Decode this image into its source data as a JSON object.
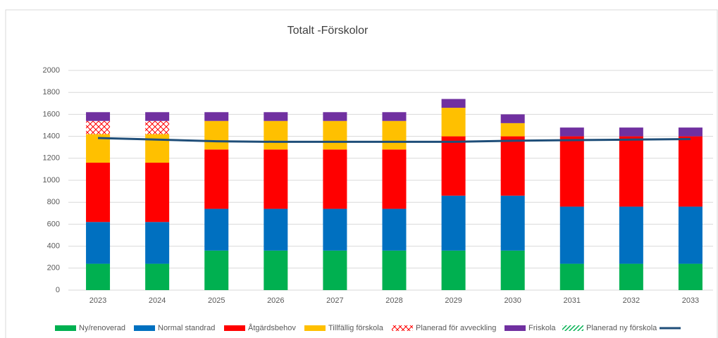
{
  "chart_data": {
    "type": "stacked_bar_line",
    "title": "Totalt -Förskolor",
    "categories": [
      "2023",
      "2024",
      "2025",
      "2026",
      "2027",
      "2028",
      "2029",
      "2030",
      "2031",
      "2032",
      "2033"
    ],
    "ylim": [
      0,
      2000
    ],
    "yticks": [
      0,
      200,
      400,
      600,
      800,
      1000,
      1200,
      1400,
      1600,
      1800,
      2000
    ],
    "grid": true,
    "series": [
      {
        "name": "Ny/renoverad",
        "color": "#00b050",
        "values": [
          240,
          240,
          360,
          360,
          360,
          360,
          360,
          360,
          240,
          240,
          240
        ]
      },
      {
        "name": "Normal standrad",
        "color": "#0070c0",
        "values": [
          380,
          380,
          380,
          380,
          380,
          380,
          500,
          500,
          520,
          520,
          520
        ]
      },
      {
        "name": "Åtgärdsbehov",
        "color": "#ff0000",
        "values": [
          540,
          540,
          540,
          540,
          540,
          540,
          540,
          540,
          640,
          640,
          640
        ]
      },
      {
        "name": "Tillfällig förskola",
        "color": "#ffc000",
        "values": [
          260,
          260,
          260,
          260,
          260,
          260,
          260,
          120,
          0,
          0,
          0
        ]
      },
      {
        "name": "Planerad för avveckling",
        "color": "#ff0000",
        "pattern": "crosshatch",
        "values": [
          120,
          120,
          0,
          0,
          0,
          0,
          0,
          0,
          0,
          0,
          0
        ]
      },
      {
        "name": "Friskola",
        "color": "#7030a0",
        "values": [
          80,
          80,
          80,
          80,
          80,
          80,
          80,
          80,
          80,
          80,
          80
        ]
      },
      {
        "name": "Planerad ny förskola",
        "color": "#00b050",
        "pattern": "diagonal",
        "values": [
          0,
          0,
          0,
          0,
          0,
          0,
          0,
          0,
          0,
          0,
          0
        ]
      },
      {
        "type": "line",
        "color": "#1f4e79",
        "values": [
          1385,
          1370,
          1355,
          1350,
          1350,
          1350,
          1350,
          1360,
          1365,
          1370,
          1375
        ]
      }
    ]
  }
}
